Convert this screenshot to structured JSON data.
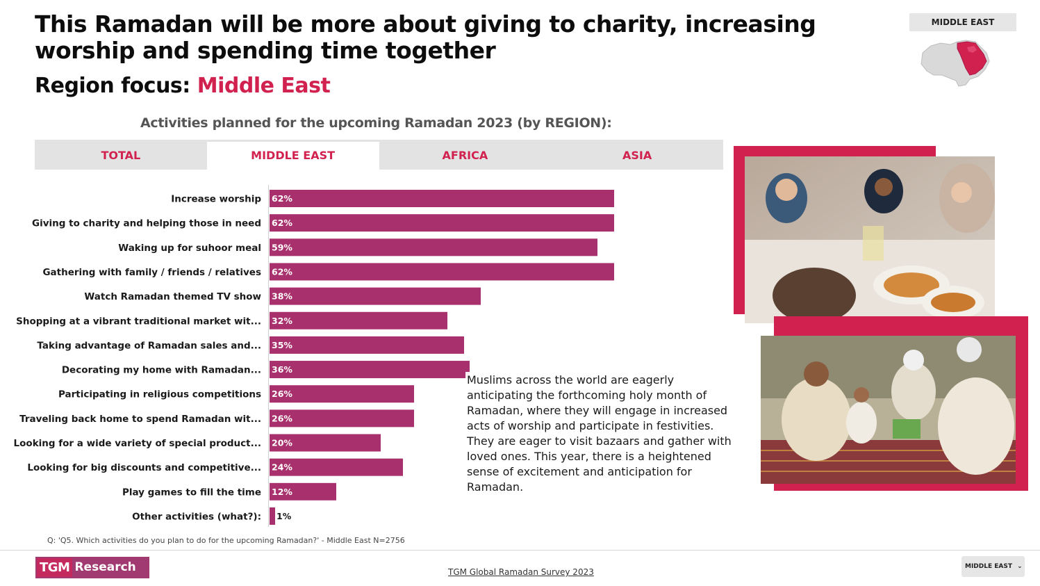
{
  "header": {
    "title": "This Ramadan will be more about giving to charity, increasing worship and spending time together",
    "region_focus_label": "Region focus:",
    "region_focus_value": "Middle East",
    "region_badge": "MIDDLE EAST"
  },
  "tabs": [
    {
      "label": "TOTAL",
      "active": false
    },
    {
      "label": "MIDDLE EAST",
      "active": true
    },
    {
      "label": "AFRICA",
      "active": false
    },
    {
      "label": "ASIA",
      "active": false
    }
  ],
  "chart_data": {
    "type": "bar",
    "orientation": "horizontal",
    "title": "Activities planned for the upcoming Ramadan 2023 (by REGION):",
    "categories": [
      "Increase worship",
      "Giving to charity and helping those in need",
      "Waking up for suhoor meal",
      "Gathering with family / friends / relatives",
      "Watch Ramadan themed TV show",
      "Shopping at a vibrant traditional market wit...",
      "Taking advantage of Ramadan sales and...",
      "Decorating my home with Ramadan...",
      "Participating in religious competitions",
      "Traveling back home to spend Ramadan wit...",
      "Looking for a wide variety of special product...",
      "Looking for big discounts and competitive...",
      "Play games to fill the time",
      "Other activities (what?):"
    ],
    "values": [
      62,
      62,
      59,
      62,
      38,
      32,
      35,
      36,
      26,
      26,
      20,
      24,
      12,
      1
    ],
    "value_labels": [
      "62%",
      "62%",
      "59%",
      "62%",
      "38%",
      "32%",
      "35%",
      "36%",
      "26%",
      "26%",
      "20%",
      "24%",
      "12%",
      "1%"
    ],
    "unit": "%",
    "xlim": [
      0,
      100
    ],
    "bar_color": "#a8306c",
    "grid": false,
    "legend": "none"
  },
  "description": "Muslims across the world are eagerly anticipating the forthcoming holy month of Ramadan, where they will engage in increased acts of worship and participate in festivities. They are eager to visit bazaars and gather with loved ones. This year, there is a heightened sense of excitement and anticipation for Ramadan.",
  "footnote": "Q: 'Q5. Which activities do you plan to do for the upcoming Ramadan?' - Middle East N=2756",
  "footer": {
    "logo_tgm": "TGM",
    "logo_research": "Research",
    "survey_link": "TGM Global Ramadan Survey 2023",
    "region_select": "MIDDLE EAST",
    "select_icon": "chevron-down-icon"
  },
  "colors": {
    "accent": "#d1214f",
    "bar": "#a8306c",
    "tab_bg": "#e3e3e3"
  }
}
